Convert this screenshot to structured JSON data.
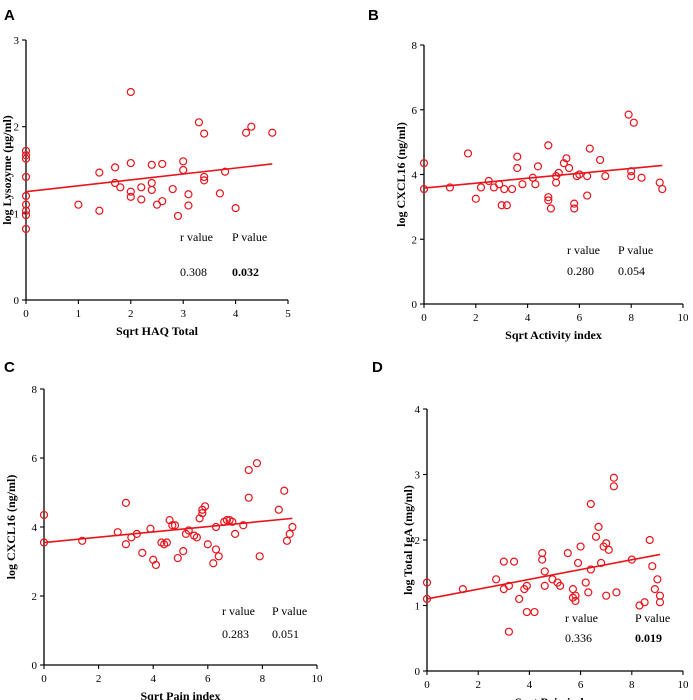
{
  "chart_data": [
    {
      "panel": "A",
      "type": "scatter",
      "xlabel": "Sqrt HAQ Total",
      "ylabel": "log Lysozyme (µg/ml)",
      "xlim": [
        0,
        5
      ],
      "ylim": [
        0,
        3
      ],
      "xticks": [
        0,
        1,
        2,
        3,
        4,
        5
      ],
      "yticks": [
        0,
        1,
        2,
        3
      ],
      "marker_color": "#e8141b",
      "line_color": "#e8141b",
      "fit": {
        "x": [
          0,
          4.7
        ],
        "y": [
          1.25,
          1.57
        ]
      },
      "stats": {
        "r_header": "r value",
        "p_header": "P value",
        "r": "0.308",
        "p": "0.032",
        "p_bold": true
      },
      "points": [
        [
          0,
          1.72
        ],
        [
          0,
          1.67
        ],
        [
          0,
          1.63
        ],
        [
          0,
          1.42
        ],
        [
          0,
          1.2
        ],
        [
          0,
          1.1
        ],
        [
          0,
          1.03
        ],
        [
          0,
          0.98
        ],
        [
          0,
          0.82
        ],
        [
          1.0,
          1.1
        ],
        [
          1.4,
          1.03
        ],
        [
          1.4,
          1.47
        ],
        [
          1.7,
          1.35
        ],
        [
          1.7,
          1.53
        ],
        [
          1.8,
          1.3
        ],
        [
          2.0,
          2.4
        ],
        [
          2.0,
          1.58
        ],
        [
          2.0,
          1.25
        ],
        [
          2.0,
          1.19
        ],
        [
          2.2,
          1.3
        ],
        [
          2.2,
          1.16
        ],
        [
          2.4,
          1.56
        ],
        [
          2.4,
          1.35
        ],
        [
          2.4,
          1.27
        ],
        [
          2.5,
          1.1
        ],
        [
          2.6,
          1.57
        ],
        [
          2.6,
          1.14
        ],
        [
          2.8,
          1.28
        ],
        [
          2.9,
          0.97
        ],
        [
          3.0,
          1.6
        ],
        [
          3.0,
          1.5
        ],
        [
          3.1,
          1.22
        ],
        [
          3.1,
          1.09
        ],
        [
          3.3,
          2.05
        ],
        [
          3.4,
          1.92
        ],
        [
          3.4,
          1.42
        ],
        [
          3.4,
          1.38
        ],
        [
          3.7,
          1.23
        ],
        [
          3.8,
          1.48
        ],
        [
          4.0,
          1.06
        ],
        [
          4.2,
          1.93
        ],
        [
          4.3,
          2.0
        ],
        [
          4.7,
          1.93
        ]
      ]
    },
    {
      "panel": "B",
      "type": "scatter",
      "xlabel": "Sqrt Activity index",
      "ylabel": "log CXCL16 (ng/ml)",
      "xlim": [
        0,
        10
      ],
      "ylim": [
        0,
        8
      ],
      "xticks": [
        0,
        2,
        4,
        6,
        8,
        10
      ],
      "yticks": [
        0,
        2,
        4,
        6,
        8
      ],
      "marker_color": "#e8141b",
      "line_color": "#e8141b",
      "fit": {
        "x": [
          0,
          9.2
        ],
        "y": [
          3.58,
          4.28
        ]
      },
      "stats": {
        "r_header": "r value",
        "p_header": "P value",
        "r": "0.280",
        "p": "0.054",
        "p_bold": false
      },
      "points": [
        [
          0,
          4.35
        ],
        [
          0,
          3.55
        ],
        [
          1.0,
          3.6
        ],
        [
          1.7,
          4.65
        ],
        [
          2.0,
          3.25
        ],
        [
          2.2,
          3.6
        ],
        [
          2.5,
          3.8
        ],
        [
          2.7,
          3.6
        ],
        [
          2.9,
          3.7
        ],
        [
          3.0,
          3.05
        ],
        [
          3.1,
          3.55
        ],
        [
          3.2,
          3.05
        ],
        [
          3.4,
          3.55
        ],
        [
          3.6,
          4.55
        ],
        [
          3.6,
          4.2
        ],
        [
          3.8,
          3.7
        ],
        [
          4.2,
          3.9
        ],
        [
          4.3,
          3.7
        ],
        [
          4.4,
          4.25
        ],
        [
          4.8,
          4.9
        ],
        [
          4.8,
          3.3
        ],
        [
          4.8,
          3.2
        ],
        [
          4.9,
          2.95
        ],
        [
          5.1,
          3.75
        ],
        [
          5.1,
          3.95
        ],
        [
          5.2,
          4.05
        ],
        [
          5.4,
          4.35
        ],
        [
          5.5,
          4.5
        ],
        [
          5.6,
          4.2
        ],
        [
          5.8,
          3.1
        ],
        [
          5.8,
          2.95
        ],
        [
          5.9,
          3.95
        ],
        [
          6.0,
          4.0
        ],
        [
          6.3,
          3.35
        ],
        [
          6.3,
          3.95
        ],
        [
          6.4,
          4.8
        ],
        [
          6.8,
          4.45
        ],
        [
          7.0,
          3.95
        ],
        [
          7.9,
          5.85
        ],
        [
          8.0,
          4.1
        ],
        [
          8.0,
          3.95
        ],
        [
          8.1,
          5.6
        ],
        [
          8.4,
          3.9
        ],
        [
          9.1,
          3.75
        ],
        [
          9.2,
          3.55
        ]
      ]
    },
    {
      "panel": "C",
      "type": "scatter",
      "xlabel": "Sqrt Pain index",
      "ylabel": "log CXCL16 (ng/ml)",
      "xlim": [
        0,
        10
      ],
      "ylim": [
        0,
        8
      ],
      "xticks": [
        0,
        2,
        4,
        6,
        8,
        10
      ],
      "yticks": [
        0,
        2,
        4,
        6,
        8
      ],
      "marker_color": "#e8141b",
      "line_color": "#e8141b",
      "fit": {
        "x": [
          0,
          9.1
        ],
        "y": [
          3.55,
          4.25
        ]
      },
      "stats": {
        "r_header": "r value",
        "p_header": "P value",
        "r": "0.283",
        "p": "0.051",
        "p_bold": false
      },
      "points": [
        [
          0,
          4.35
        ],
        [
          0,
          3.55
        ],
        [
          1.4,
          3.6
        ],
        [
          2.7,
          3.85
        ],
        [
          3.0,
          4.7
        ],
        [
          3.0,
          3.5
        ],
        [
          3.2,
          3.7
        ],
        [
          3.4,
          3.8
        ],
        [
          3.6,
          3.25
        ],
        [
          3.9,
          3.95
        ],
        [
          4.0,
          3.05
        ],
        [
          4.1,
          2.9
        ],
        [
          4.3,
          3.55
        ],
        [
          4.4,
          3.5
        ],
        [
          4.5,
          3.55
        ],
        [
          4.6,
          4.2
        ],
        [
          4.7,
          4.05
        ],
        [
          4.8,
          4.05
        ],
        [
          4.9,
          3.1
        ],
        [
          5.1,
          3.3
        ],
        [
          5.2,
          3.8
        ],
        [
          5.3,
          3.9
        ],
        [
          5.5,
          3.75
        ],
        [
          5.6,
          3.7
        ],
        [
          5.7,
          4.25
        ],
        [
          5.8,
          4.5
        ],
        [
          5.8,
          4.4
        ],
        [
          5.9,
          4.6
        ],
        [
          6.0,
          3.5
        ],
        [
          6.2,
          2.95
        ],
        [
          6.3,
          3.35
        ],
        [
          6.3,
          4.0
        ],
        [
          6.4,
          3.15
        ],
        [
          6.6,
          4.15
        ],
        [
          6.7,
          4.2
        ],
        [
          6.8,
          4.2
        ],
        [
          6.9,
          4.15
        ],
        [
          7.0,
          3.8
        ],
        [
          7.3,
          4.05
        ],
        [
          7.5,
          4.85
        ],
        [
          7.5,
          5.65
        ],
        [
          7.8,
          5.85
        ],
        [
          7.9,
          3.15
        ],
        [
          8.6,
          4.5
        ],
        [
          8.8,
          5.05
        ],
        [
          8.9,
          3.6
        ],
        [
          9.0,
          3.8
        ],
        [
          9.1,
          4.0
        ]
      ]
    },
    {
      "panel": "D",
      "type": "scatter",
      "xlabel": "Sqrt Pain index",
      "ylabel": "log Total IgA (mg/ml)",
      "xlim": [
        0,
        10
      ],
      "ylim": [
        0,
        4
      ],
      "xticks": [
        0,
        2,
        4,
        6,
        8,
        10
      ],
      "yticks": [
        0,
        1,
        2,
        3,
        4
      ],
      "marker_color": "#e8141b",
      "line_color": "#e8141b",
      "fit": {
        "x": [
          0,
          9.1
        ],
        "y": [
          1.1,
          1.78
        ]
      },
      "stats": {
        "r_header": "r value",
        "p_header": "P value",
        "r": "0.336",
        "p": "0.019",
        "p_bold": true
      },
      "points": [
        [
          0,
          1.35
        ],
        [
          0,
          1.1
        ],
        [
          1.4,
          1.25
        ],
        [
          2.7,
          1.4
        ],
        [
          3.0,
          1.67
        ],
        [
          3.0,
          1.25
        ],
        [
          3.2,
          1.3
        ],
        [
          3.2,
          0.6
        ],
        [
          3.4,
          1.67
        ],
        [
          3.6,
          1.1
        ],
        [
          3.8,
          1.25
        ],
        [
          3.9,
          1.3
        ],
        [
          3.9,
          0.9
        ],
        [
          4.2,
          0.9
        ],
        [
          4.5,
          1.8
        ],
        [
          4.5,
          1.7
        ],
        [
          4.6,
          1.3
        ],
        [
          4.6,
          1.52
        ],
        [
          4.9,
          1.4
        ],
        [
          5.1,
          1.35
        ],
        [
          5.2,
          1.3
        ],
        [
          5.5,
          1.8
        ],
        [
          5.7,
          1.25
        ],
        [
          5.7,
          1.12
        ],
        [
          5.8,
          1.07
        ],
        [
          5.8,
          1.15
        ],
        [
          5.9,
          1.65
        ],
        [
          6.0,
          1.9
        ],
        [
          6.2,
          1.35
        ],
        [
          6.3,
          1.2
        ],
        [
          6.4,
          1.55
        ],
        [
          6.4,
          2.55
        ],
        [
          6.6,
          2.05
        ],
        [
          6.7,
          2.2
        ],
        [
          6.8,
          1.65
        ],
        [
          6.9,
          1.9
        ],
        [
          7.0,
          1.95
        ],
        [
          7.0,
          1.15
        ],
        [
          7.1,
          1.85
        ],
        [
          7.3,
          2.95
        ],
        [
          7.3,
          2.82
        ],
        [
          7.4,
          1.2
        ],
        [
          8.0,
          1.7
        ],
        [
          8.3,
          1.0
        ],
        [
          8.5,
          1.05
        ],
        [
          8.7,
          2.0
        ],
        [
          8.8,
          1.6
        ],
        [
          8.9,
          1.25
        ],
        [
          9.0,
          1.4
        ],
        [
          9.1,
          1.15
        ],
        [
          9.1,
          1.05
        ]
      ]
    }
  ]
}
